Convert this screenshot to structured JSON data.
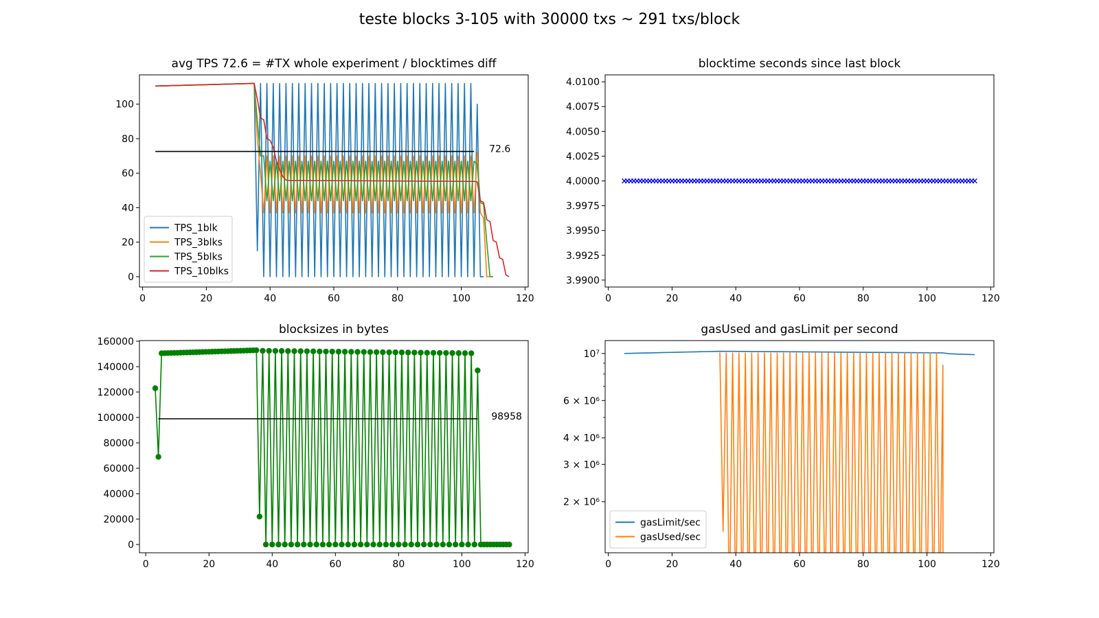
{
  "suptitle": "teste blocks 3-105 with 30000 txs ~ 291 txs/block",
  "chart_data": [
    {
      "type": "line",
      "title": "avg TPS 72.6 = #TX whole experiment / blocktimes diff",
      "xlim": [
        -1,
        121
      ],
      "ylim": [
        -6,
        117
      ],
      "xticks": [
        0,
        20,
        40,
        60,
        80,
        100,
        120
      ],
      "yticks": [
        0,
        20,
        40,
        60,
        80,
        100
      ],
      "grid": false,
      "legend_position": "lower-left",
      "average": {
        "value": 72.6,
        "label": "72.6",
        "x_from": 4,
        "x_to": 104,
        "color": "#000000"
      },
      "series": [
        {
          "name": "TPS_1blk",
          "color": "#1f77b4",
          "pattern": "tps1"
        },
        {
          "name": "TPS_3blks",
          "color": "#ff7f0e",
          "pattern": "tps3"
        },
        {
          "name": "TPS_5blks",
          "color": "#2ca02c",
          "pattern": "tps5"
        },
        {
          "name": "TPS_10blks",
          "color": "#d62728",
          "pattern": "tps10"
        }
      ]
    },
    {
      "type": "scatter",
      "title": "blocktime seconds since last block",
      "xlim": [
        -1,
        121
      ],
      "ylim": [
        3.9893,
        4.0107
      ],
      "xticks": [
        0,
        20,
        40,
        60,
        80,
        100,
        120
      ],
      "yticks": [
        "3.9900",
        "3.9925",
        "3.9950",
        "3.9975",
        "4.0000",
        "4.0025",
        "4.0050",
        "4.0075",
        "4.0100"
      ],
      "grid": false,
      "marker": "x",
      "color": "#0000ff",
      "x_range": [
        5,
        115
      ],
      "y_value": 4.0
    },
    {
      "type": "line",
      "title": "blocksizes in bytes",
      "xlim": [
        -2,
        121
      ],
      "ylim": [
        -6500,
        160500
      ],
      "xticks": [
        0,
        20,
        40,
        60,
        80,
        100,
        120
      ],
      "yticks": [
        0,
        20000,
        40000,
        60000,
        80000,
        100000,
        120000,
        140000,
        160000
      ],
      "grid": false,
      "marker": "o",
      "color": "#008000",
      "average": {
        "value": 98958,
        "label": "98958",
        "x_from": 4,
        "x_to": 105,
        "color": "#000000"
      },
      "pattern": "blocksize"
    },
    {
      "type": "line",
      "title": "gasUsed and gasLimit per second",
      "xlim": [
        -1,
        121
      ],
      "yscale": "log",
      "ylim": [
        1150000,
        11500000
      ],
      "yticks": [
        {
          "value": 2000000,
          "label": "2 × 10⁶"
        },
        {
          "value": 3000000,
          "label": "3 × 10⁶"
        },
        {
          "value": 4000000,
          "label": "4 × 10⁶"
        },
        {
          "value": 6000000,
          "label": "6 × 10⁶"
        },
        {
          "value": 10000000,
          "label": "10⁷"
        }
      ],
      "minor_yticks": [
        5000000,
        7000000,
        8000000,
        9000000
      ],
      "xticks": [
        0,
        20,
        40,
        60,
        80,
        100,
        120
      ],
      "grid": false,
      "legend_position": "lower-left",
      "series": [
        {
          "name": "gasLimit/sec",
          "color": "#1f77b4",
          "pattern": "gaslimit"
        },
        {
          "name": "gasUsed/sec",
          "color": "#ff7f0e",
          "pattern": "gasused"
        }
      ]
    }
  ]
}
